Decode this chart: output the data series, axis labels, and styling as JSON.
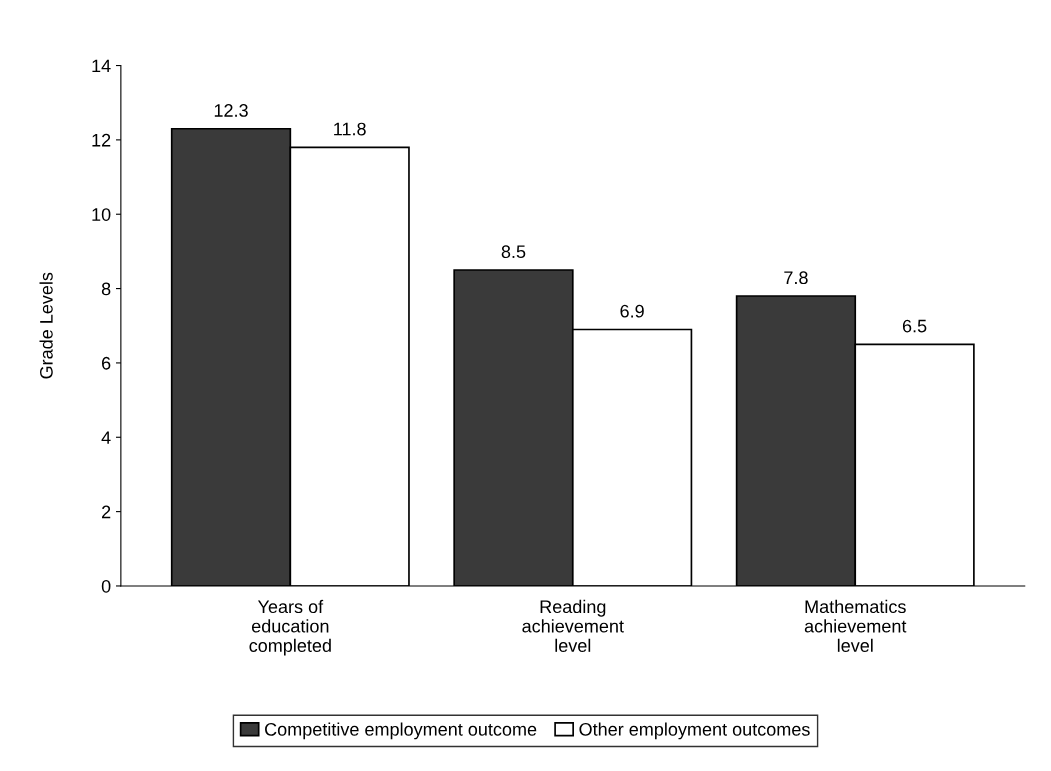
{
  "chart_data": {
    "type": "bar",
    "ylabel": "Grade Levels",
    "categories": [
      "Years of\neducation\ncompleted",
      "Reading\nachievement\nlevel",
      "Mathematics\nachievement\nlevel"
    ],
    "series": [
      {
        "name": "Competitive employment outcome",
        "color": "#3a3a3a",
        "values": [
          12.3,
          8.5,
          7.8
        ]
      },
      {
        "name": "Other employment outcomes",
        "color": "#ffffff",
        "values": [
          11.8,
          6.9,
          6.5
        ]
      }
    ],
    "ylim": [
      0,
      14
    ],
    "yticks": [
      0,
      2,
      4,
      6,
      8,
      10,
      12,
      14
    ],
    "grid": false,
    "legend": "bottom",
    "data_labels": true
  }
}
